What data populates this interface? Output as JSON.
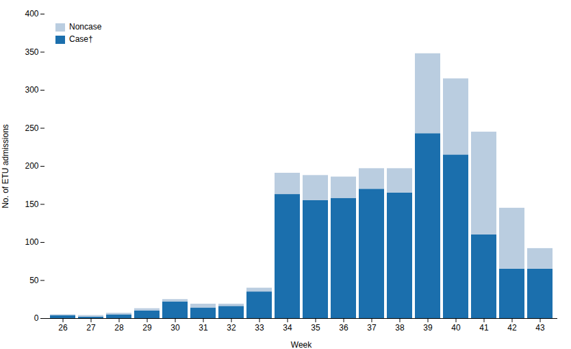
{
  "chart_data": {
    "type": "bar",
    "stacked": true,
    "categories": [
      "26",
      "27",
      "28",
      "29",
      "30",
      "31",
      "32",
      "33",
      "34",
      "35",
      "36",
      "37",
      "38",
      "39",
      "40",
      "41",
      "42",
      "43"
    ],
    "series": [
      {
        "name": "Case†",
        "color": "#1B6FAD",
        "values": [
          4,
          2,
          5,
          10,
          22,
          14,
          16,
          35,
          163,
          155,
          158,
          170,
          165,
          243,
          215,
          110,
          65,
          65
        ]
      },
      {
        "name": "Noncase",
        "color": "#BACDE0",
        "values": [
          1,
          2,
          2,
          3,
          3,
          5,
          3,
          5,
          28,
          33,
          28,
          27,
          32,
          105,
          100,
          135,
          80,
          27
        ]
      }
    ],
    "xlabel": "Week",
    "ylabel": "No. of ETU admissions",
    "ylim": [
      0,
      400
    ],
    "yticks": [
      0,
      50,
      100,
      150,
      200,
      250,
      300,
      350,
      400
    ],
    "legend": "upper left",
    "grid": false
  }
}
